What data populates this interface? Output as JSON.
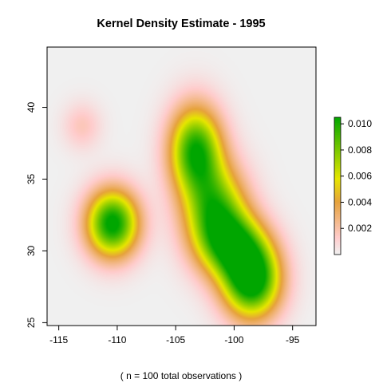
{
  "chart_data": {
    "type": "heatmap",
    "title": "Kernel Density Estimate - 1995",
    "xlabel": "( n = 100 total observations )",
    "ylabel": "",
    "xlim": [
      -116,
      -93
    ],
    "ylim": [
      24.8,
      44.2
    ],
    "x_ticks": [
      "-115",
      "-110",
      "-105",
      "-100",
      "-95"
    ],
    "y_ticks": [
      "25",
      "30",
      "35",
      "40"
    ],
    "legend": {
      "placement": "right",
      "range": [
        0,
        0.0105
      ],
      "ticks": [
        "0.002",
        "0.004",
        "0.006",
        "0.008",
        "0.010"
      ]
    },
    "colors": {
      "background": "#f0f0f0",
      "low": "#ffcccc",
      "mid_low": "#e6a23c",
      "mid": "#e6e600",
      "high": "#00a600"
    },
    "density_peaks": [
      {
        "x": -110.4,
        "y": 31.9,
        "density": 0.0095
      },
      {
        "x": -103.3,
        "y": 37.0,
        "density": 0.0082
      },
      {
        "x": -101.5,
        "y": 32.8,
        "density": 0.007
      },
      {
        "x": -98.5,
        "y": 28.2,
        "density": 0.01
      },
      {
        "x": -113.0,
        "y": 38.7,
        "density": 0.0012
      }
    ]
  }
}
